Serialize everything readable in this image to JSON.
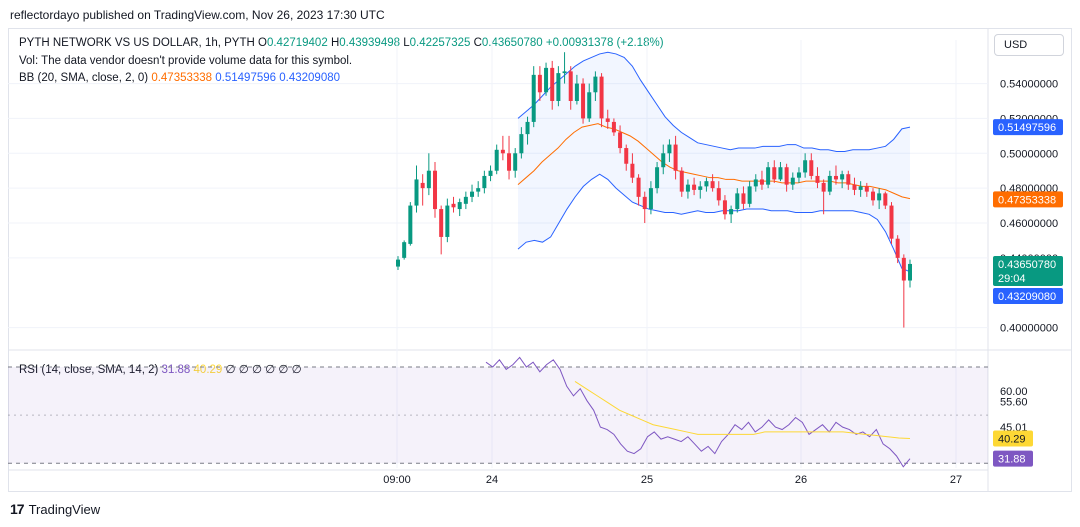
{
  "header": {
    "publisher": "reflectordayo published on TradingView.com, Nov 26, 2023 17:30 UTC"
  },
  "legend": {
    "symbol": "PYTH NETWORK VS US DOLLAR, 1h, PYTH",
    "o_label": "O",
    "o": "0.42719402",
    "h_label": "H",
    "h": "0.43939498",
    "l_label": "L",
    "l": "0.42257325",
    "c_label": "C",
    "c": "0.43650780",
    "change": "+0.00931378 (+2.18%)",
    "vol": "Vol: The data vendor doesn't provide volume data for this symbol.",
    "bb_label": "BB (20, SMA, close, 2, 0)",
    "bb_basis": "0.47353338",
    "bb_upper": "0.51497596",
    "bb_lower": "0.43209080",
    "rsi_label": "RSI (14, close, SMA, 14, 2)",
    "rsi_value": "31.88",
    "rsi_ma": "40.29",
    "rsi_zeros": "∅ ∅ ∅ ∅ ∅ ∅"
  },
  "currency_button": "USD",
  "branding": "TradingView",
  "colors": {
    "up": "#089981",
    "down": "#f23645",
    "bb_basis": "#ff6d00",
    "bb_band": "#2962ff",
    "rsi": "#7e57c2",
    "rsi_ma": "#fdd835"
  },
  "chart_data": [
    {
      "type": "candlestick",
      "symbol": "PYTH NETWORK VS US DOLLAR",
      "ylim": [
        0.39,
        0.565
      ],
      "y_ticks": [
        "0.54000000",
        "0.52000000",
        "0.50000000",
        "0.48000000",
        "0.46000000",
        "0.44000000",
        "0.40000000"
      ],
      "x_ticks": [
        "09:00",
        "24",
        "25",
        "26",
        "27"
      ],
      "candles": [
        [
          0.435,
          0.441,
          0.433,
          0.439
        ],
        [
          0.44,
          0.45,
          0.439,
          0.449
        ],
        [
          0.448,
          0.472,
          0.447,
          0.47
        ],
        [
          0.47,
          0.493,
          0.466,
          0.485
        ],
        [
          0.483,
          0.488,
          0.47,
          0.48
        ],
        [
          0.48,
          0.5,
          0.476,
          0.49
        ],
        [
          0.49,
          0.495,
          0.463,
          0.468
        ],
        [
          0.468,
          0.47,
          0.442,
          0.452
        ],
        [
          0.452,
          0.474,
          0.449,
          0.47
        ],
        [
          0.471,
          0.475,
          0.466,
          0.469
        ],
        [
          0.468,
          0.474,
          0.464,
          0.472
        ],
        [
          0.471,
          0.478,
          0.468,
          0.475
        ],
        [
          0.475,
          0.482,
          0.472,
          0.478
        ],
        [
          0.478,
          0.484,
          0.475,
          0.48
        ],
        [
          0.48,
          0.49,
          0.477,
          0.487
        ],
        [
          0.487,
          0.493,
          0.484,
          0.49
        ],
        [
          0.49,
          0.505,
          0.488,
          0.502
        ],
        [
          0.502,
          0.51,
          0.496,
          0.5
        ],
        [
          0.5,
          0.51,
          0.485,
          0.49
        ],
        [
          0.49,
          0.503,
          0.486,
          0.5
        ],
        [
          0.5,
          0.515,
          0.497,
          0.511
        ],
        [
          0.511,
          0.521,
          0.505,
          0.518
        ],
        [
          0.518,
          0.55,
          0.515,
          0.545
        ],
        [
          0.545,
          0.55,
          0.53,
          0.535
        ],
        [
          0.535,
          0.552,
          0.533,
          0.549
        ],
        [
          0.549,
          0.553,
          0.525,
          0.53
        ],
        [
          0.53,
          0.55,
          0.527,
          0.546
        ],
        [
          0.546,
          0.558,
          0.54,
          0.547
        ],
        [
          0.547,
          0.55,
          0.525,
          0.53
        ],
        [
          0.53,
          0.545,
          0.528,
          0.54
        ],
        [
          0.54,
          0.543,
          0.517,
          0.52
        ],
        [
          0.52,
          0.54,
          0.518,
          0.535
        ],
        [
          0.535,
          0.547,
          0.53,
          0.544
        ],
        [
          0.544,
          0.546,
          0.515,
          0.52
        ],
        [
          0.52,
          0.525,
          0.514,
          0.518
        ],
        [
          0.518,
          0.52,
          0.51,
          0.512
        ],
        [
          0.512,
          0.516,
          0.5,
          0.503
        ],
        [
          0.503,
          0.505,
          0.49,
          0.494
        ],
        [
          0.494,
          0.5,
          0.483,
          0.486
        ],
        [
          0.486,
          0.488,
          0.47,
          0.475
        ],
        [
          0.475,
          0.478,
          0.46,
          0.468
        ],
        [
          0.468,
          0.484,
          0.465,
          0.48
        ],
        [
          0.48,
          0.495,
          0.477,
          0.492
        ],
        [
          0.492,
          0.505,
          0.488,
          0.5
        ],
        [
          0.5,
          0.508,
          0.495,
          0.505
        ],
        [
          0.505,
          0.51,
          0.485,
          0.49
        ],
        [
          0.49,
          0.492,
          0.475,
          0.478
        ],
        [
          0.478,
          0.485,
          0.474,
          0.482
        ],
        [
          0.482,
          0.486,
          0.476,
          0.479
        ],
        [
          0.479,
          0.484,
          0.474,
          0.481
        ],
        [
          0.481,
          0.486,
          0.478,
          0.484
        ],
        [
          0.484,
          0.488,
          0.478,
          0.48
        ],
        [
          0.48,
          0.484,
          0.47,
          0.473
        ],
        [
          0.473,
          0.476,
          0.462,
          0.465
        ],
        [
          0.465,
          0.47,
          0.46,
          0.468
        ],
        [
          0.468,
          0.48,
          0.466,
          0.477
        ],
        [
          0.477,
          0.481,
          0.468,
          0.471
        ],
        [
          0.471,
          0.484,
          0.469,
          0.481
        ],
        [
          0.481,
          0.488,
          0.478,
          0.485
        ],
        [
          0.485,
          0.49,
          0.479,
          0.482
        ],
        [
          0.482,
          0.495,
          0.48,
          0.492
        ],
        [
          0.492,
          0.496,
          0.483,
          0.485
        ],
        [
          0.485,
          0.495,
          0.484,
          0.492
        ],
        [
          0.492,
          0.494,
          0.478,
          0.482
        ],
        [
          0.482,
          0.489,
          0.479,
          0.486
        ],
        [
          0.486,
          0.492,
          0.483,
          0.489
        ],
        [
          0.489,
          0.5,
          0.486,
          0.496
        ],
        [
          0.496,
          0.5,
          0.485,
          0.487
        ],
        [
          0.487,
          0.492,
          0.48,
          0.483
        ],
        [
          0.483,
          0.485,
          0.465,
          0.478
        ],
        [
          0.478,
          0.49,
          0.476,
          0.487
        ],
        [
          0.487,
          0.493,
          0.482,
          0.485
        ],
        [
          0.485,
          0.49,
          0.48,
          0.488
        ],
        [
          0.488,
          0.49,
          0.479,
          0.482
        ],
        [
          0.482,
          0.486,
          0.476,
          0.479
        ],
        [
          0.479,
          0.484,
          0.475,
          0.481
        ],
        [
          0.481,
          0.483,
          0.475,
          0.478
        ],
        [
          0.478,
          0.48,
          0.47,
          0.473
        ],
        [
          0.473,
          0.48,
          0.468,
          0.477
        ],
        [
          0.477,
          0.478,
          0.468,
          0.47
        ],
        [
          0.47,
          0.472,
          0.448,
          0.451
        ],
        [
          0.451,
          0.453,
          0.437,
          0.44
        ],
        [
          0.44,
          0.442,
          0.4,
          0.427
        ],
        [
          0.427,
          0.439,
          0.423,
          0.4365
        ]
      ],
      "bb_basis": [
        0.482,
        0.486,
        0.49,
        0.495,
        0.499,
        0.503,
        0.508,
        0.512,
        0.515,
        0.516,
        0.517,
        0.515,
        0.514,
        0.512,
        0.51,
        0.507,
        0.503,
        0.499,
        0.495,
        0.492,
        0.49,
        0.489,
        0.488,
        0.487,
        0.486,
        0.486,
        0.485,
        0.485,
        0.484,
        0.484,
        0.484,
        0.484,
        0.484,
        0.483,
        0.483,
        0.483,
        0.484,
        0.484,
        0.484,
        0.484,
        0.483,
        0.483,
        0.482,
        0.481,
        0.481,
        0.48,
        0.479,
        0.477,
        0.475,
        0.474
      ],
      "bb_upper": [
        0.52,
        0.524,
        0.528,
        0.533,
        0.538,
        0.542,
        0.546,
        0.55,
        0.553,
        0.555,
        0.557,
        0.558,
        0.557,
        0.555,
        0.55,
        0.542,
        0.535,
        0.528,
        0.521,
        0.516,
        0.512,
        0.509,
        0.506,
        0.505,
        0.504,
        0.503,
        0.502,
        0.503,
        0.503,
        0.503,
        0.504,
        0.504,
        0.504,
        0.505,
        0.505,
        0.503,
        0.503,
        0.502,
        0.502,
        0.501,
        0.501,
        0.502,
        0.502,
        0.502,
        0.503,
        0.504,
        0.508,
        0.514,
        0.515
      ],
      "bb_lower": [
        0.445,
        0.449,
        0.45,
        0.449,
        0.452,
        0.46,
        0.468,
        0.475,
        0.481,
        0.485,
        0.488,
        0.485,
        0.48,
        0.476,
        0.472,
        0.47,
        0.468,
        0.467,
        0.466,
        0.466,
        0.465,
        0.466,
        0.467,
        0.466,
        0.466,
        0.467,
        0.467,
        0.467,
        0.468,
        0.468,
        0.468,
        0.467,
        0.467,
        0.467,
        0.466,
        0.466,
        0.466,
        0.467,
        0.467,
        0.467,
        0.467,
        0.467,
        0.466,
        0.465,
        0.462,
        0.455,
        0.445,
        0.434,
        0.432
      ],
      "last_price": "0.43650780",
      "countdown": "29:04",
      "price_tags": {
        "bb_upper": "0.51497596",
        "bb_basis": "0.47353338",
        "bb_lower": "0.43209080"
      }
    },
    {
      "type": "line",
      "name": "RSI",
      "ylim": [
        28,
        75
      ],
      "y_ticks": [
        "60.00",
        "55.60",
        "45.01"
      ],
      "rsi": [
        72,
        70,
        73,
        69,
        71,
        74,
        70,
        72,
        68,
        71,
        73,
        69,
        62,
        58,
        61,
        56,
        52,
        45,
        44,
        42,
        38,
        35,
        34,
        36,
        41,
        43,
        40,
        41,
        40,
        39,
        41,
        38,
        35,
        37,
        34,
        39,
        42,
        46,
        44,
        47,
        43,
        45,
        48,
        45,
        44,
        46,
        49,
        47,
        42,
        44,
        46,
        43,
        47,
        45,
        44,
        42,
        43,
        41,
        44,
        38,
        36,
        33,
        28.5,
        31.88
      ],
      "rsi_ma": [
        64,
        61,
        58,
        55,
        52,
        50,
        48,
        46,
        45,
        44,
        43,
        42,
        42,
        42,
        42,
        42,
        42,
        43,
        43,
        43,
        43,
        43,
        43,
        43,
        43,
        42.5,
        42,
        41.5,
        41,
        40.5,
        40.29
      ],
      "rsi_value": "31.88",
      "rsi_ma_value": "40.29",
      "overbought": 70,
      "oversold": 30
    }
  ]
}
